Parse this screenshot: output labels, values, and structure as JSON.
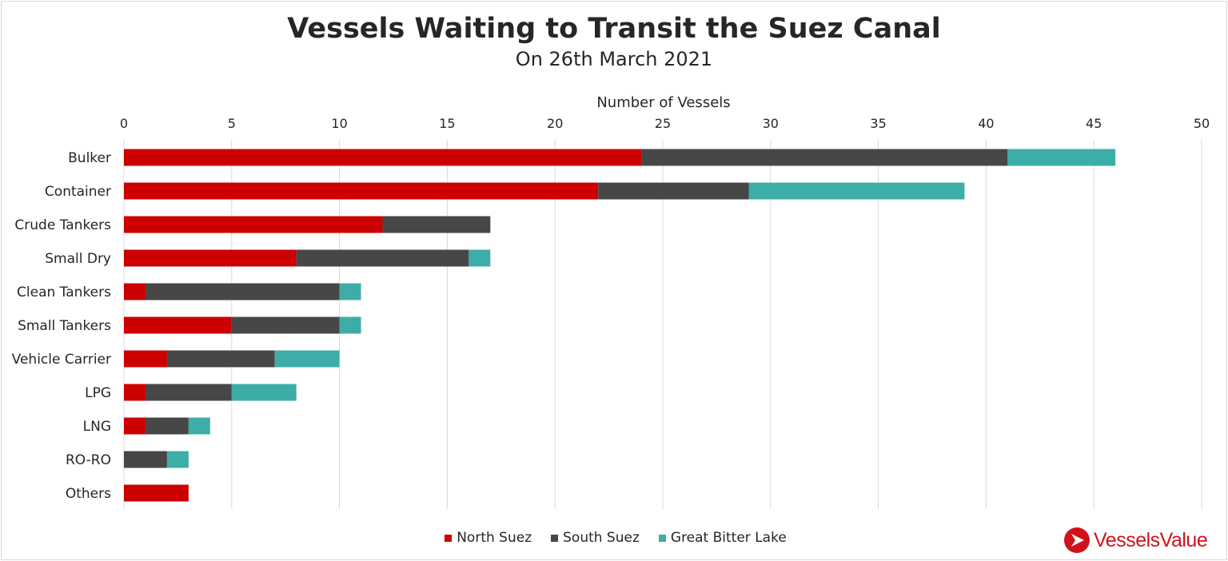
{
  "colors": {
    "north_suez": "#cc0000",
    "south_suez": "#474747",
    "great_bitter_lake": "#3dada8",
    "gridline": "#d9d9d9",
    "brand": "#d0121b"
  },
  "chart_data": {
    "type": "bar",
    "orientation": "horizontal",
    "stacked": true,
    "title": "Vessels Waiting to Transit the Suez Canal",
    "subtitle": "On 26th March 2021",
    "xlabel": "Number of Vessels",
    "xlabel_position": "top",
    "ylabel": "",
    "xlim": [
      0,
      50
    ],
    "xticks": [
      0,
      5,
      10,
      15,
      20,
      25,
      30,
      35,
      40,
      45,
      50
    ],
    "grid": true,
    "legend_position": "bottom",
    "categories": [
      "Bulker",
      "Container",
      "Crude Tankers",
      "Small Dry",
      "Clean Tankers",
      "Small Tankers",
      "Vehicle Carrier",
      "LPG",
      "LNG",
      "RO-RO",
      "Others"
    ],
    "series": [
      {
        "name": "North Suez",
        "color_key": "north_suez",
        "values": [
          24,
          22,
          12,
          8,
          1,
          5,
          2,
          1,
          1,
          0,
          3
        ]
      },
      {
        "name": "South Suez",
        "color_key": "south_suez",
        "values": [
          17,
          7,
          5,
          8,
          9,
          5,
          5,
          4,
          2,
          2,
          0
        ]
      },
      {
        "name": "Great Bitter Lake",
        "color_key": "great_bitter_lake",
        "values": [
          5,
          10,
          0,
          1,
          1,
          1,
          3,
          3,
          1,
          1,
          0
        ]
      }
    ]
  },
  "legend": [
    {
      "label": "North Suez",
      "color_key": "north_suez"
    },
    {
      "label": "South Suez",
      "color_key": "south_suez"
    },
    {
      "label": "Great Bitter Lake",
      "color_key": "great_bitter_lake"
    }
  ],
  "branding": {
    "logo_text": "VesselsValue",
    "logo_icon": "vesselsvalue-logo-icon"
  }
}
